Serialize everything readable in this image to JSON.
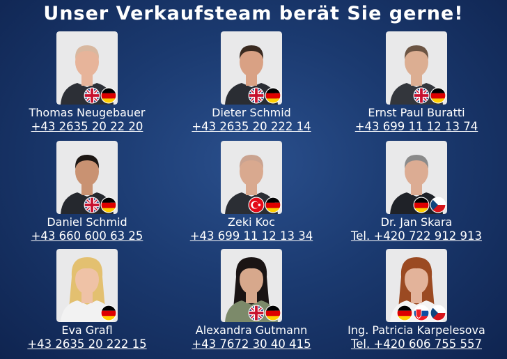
{
  "title": "Unser Verkaufsteam berät Sie gerne!",
  "team": [
    {
      "name": "Thomas Neugebauer",
      "phone": "+43 2635 20 22 20"
    },
    {
      "name": "Dieter Schmid",
      "phone": "+43 2635 20 222 14"
    },
    {
      "name": "Ernst Paul Buratti",
      "phone": "+43 699 11 12 13 74"
    },
    {
      "name": "Daniel Schmid",
      "phone": "+43 660 600 63 25"
    },
    {
      "name": "Zeki Koc",
      "phone": "+43 699 11 12 13 34"
    },
    {
      "name": "Dr. Jan Skara",
      "phone": "Tel. +420 722 912 913"
    },
    {
      "name": "Eva Grafl",
      "phone": "+43 2635 20 222 15"
    },
    {
      "name": "Alexandra Gutmann",
      "phone": "+43 7672 30 40 415"
    },
    {
      "name": "Ing. Patricia Karpelesova",
      "phone": "Tel. +420 606 755 557"
    }
  ]
}
